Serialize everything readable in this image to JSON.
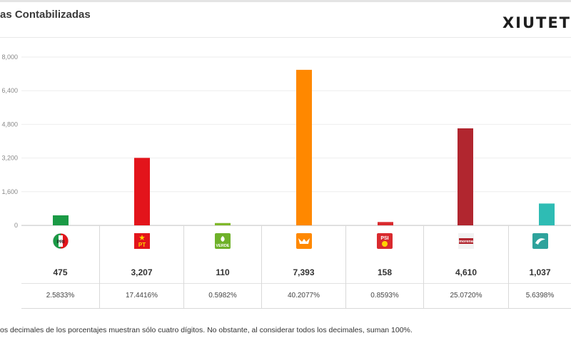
{
  "header": {
    "title": "as Contabilizadas",
    "brand": "XIUTET"
  },
  "chart_data": {
    "type": "bar",
    "categories": [
      "PRI",
      "PT",
      "VERDE",
      "MC",
      "PSI",
      "MORENA",
      "MC Oaxaca"
    ],
    "values": [
      475,
      3207,
      110,
      7393,
      158,
      4610,
      1037
    ],
    "ylim": [
      0,
      8000
    ],
    "yticks": [
      "8,000",
      "6,400",
      "4,800",
      "3,200",
      "1,600",
      "0"
    ],
    "grid": true,
    "colors": [
      "#1a9a45",
      "#e3141b",
      "#7fb82a",
      "#ff8800",
      "#d92a2e",
      "#b1262f",
      "#2ebcb4"
    ]
  },
  "parties": [
    {
      "logo": "pri-logo",
      "logo_text": "PRI",
      "votes": "475",
      "pct": "2.5833%"
    },
    {
      "logo": "pt-logo",
      "logo_text": "PT",
      "votes": "3,207",
      "pct": "17.4416%"
    },
    {
      "logo": "verde-logo",
      "logo_text": "VERDE",
      "votes": "110",
      "pct": "0.5982%"
    },
    {
      "logo": "movimiento-ciudadano-logo",
      "logo_text": "",
      "votes": "7,393",
      "pct": "40.2077%"
    },
    {
      "logo": "psi-logo",
      "logo_text": "PSI",
      "votes": "158",
      "pct": "0.8593%"
    },
    {
      "logo": "morena-logo",
      "logo_text": "morena",
      "votes": "4,610",
      "pct": "25.0720%"
    },
    {
      "logo": "local-party-logo",
      "logo_text": "",
      "votes": "1,037",
      "pct": "5.6398%"
    }
  ],
  "footnote": "os decimales de los porcentajes muestran sólo cuatro dígitos. No obstante, al considerar todos los decimales, suman 100%."
}
